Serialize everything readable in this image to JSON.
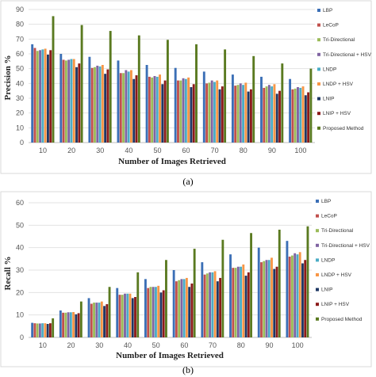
{
  "chart_data": [
    {
      "type": "bar",
      "caption": "(a)",
      "xlabel": "Number of Images Retrieved",
      "ylabel": "Precision %",
      "ylim": [
        0,
        90
      ],
      "yticks": [
        0,
        10,
        20,
        30,
        40,
        50,
        60,
        70,
        80,
        90
      ],
      "grid": true,
      "legend_position": "right",
      "categories": [
        "10",
        "20",
        "30",
        "40",
        "50",
        "60",
        "70",
        "80",
        "90",
        "100"
      ],
      "series": [
        {
          "name": "LBP",
          "color": "#3b6fb6",
          "values": [
            66.5,
            60,
            58,
            55.5,
            52.5,
            50.5,
            48,
            46,
            44.5,
            43
          ]
        },
        {
          "name": "LeCoP",
          "color": "#c0504d",
          "values": [
            64,
            56,
            50.5,
            47,
            44.5,
            42,
            40,
            38.5,
            37,
            36
          ]
        },
        {
          "name": "Tri-Directional",
          "color": "#9bbb59",
          "values": [
            62,
            55.5,
            51,
            47,
            44,
            42,
            40.5,
            39,
            38,
            36.5
          ]
        },
        {
          "name": "Tri-Directional + HSV",
          "color": "#8064a2",
          "values": [
            62.5,
            56,
            52,
            49,
            45,
            43.5,
            42,
            40,
            39,
            37.5
          ]
        },
        {
          "name": "LNDP",
          "color": "#4bacc6",
          "values": [
            63,
            56.5,
            51.5,
            48,
            44.5,
            43,
            41,
            39,
            38,
            37
          ]
        },
        {
          "name": "LNDP + HSV",
          "color": "#f79646",
          "values": [
            63.5,
            56.5,
            52.5,
            49,
            46,
            44,
            42,
            40.5,
            39.5,
            38
          ]
        },
        {
          "name": "LNIP",
          "color": "#1f3864",
          "values": [
            59.5,
            51,
            46.5,
            43,
            39.5,
            37.5,
            36,
            34.5,
            33,
            32
          ]
        },
        {
          "name": "LNIP + HSV",
          "color": "#8b1a1a",
          "values": [
            62.5,
            53.5,
            49.5,
            45.5,
            42,
            39.5,
            38,
            36,
            35,
            34
          ]
        },
        {
          "name": "Proposed Method",
          "color": "#5a7a20",
          "values": [
            85.5,
            79.5,
            75.5,
            72.5,
            69.5,
            66.5,
            63,
            58.5,
            53.5,
            50
          ]
        }
      ]
    },
    {
      "type": "bar",
      "caption": "(b)",
      "xlabel": "Number of Images Retrieved",
      "ylabel": "Recall %",
      "ylim": [
        0,
        60
      ],
      "yticks": [
        0,
        10,
        20,
        30,
        40,
        50,
        60
      ],
      "grid": true,
      "legend_position": "right",
      "categories": [
        "10",
        "20",
        "30",
        "40",
        "50",
        "60",
        "70",
        "80",
        "90",
        "100"
      ],
      "series": [
        {
          "name": "LBP",
          "color": "#3b6fb6",
          "values": [
            6.5,
            12,
            17.5,
            22,
            26,
            30,
            33.5,
            37,
            40,
            43
          ]
        },
        {
          "name": "LeCoP",
          "color": "#c0504d",
          "values": [
            6.3,
            11,
            15,
            19,
            22,
            25,
            28,
            31,
            33.5,
            36
          ]
        },
        {
          "name": "Tri-Directional",
          "color": "#9bbb59",
          "values": [
            6.2,
            11,
            15.5,
            19,
            22.5,
            25.5,
            28.5,
            31,
            34,
            36.5
          ]
        },
        {
          "name": "Tri-Directional + HSV",
          "color": "#8064a2",
          "values": [
            6.2,
            11.2,
            15.5,
            19.5,
            22.5,
            26,
            29,
            31.5,
            34.5,
            37.5
          ]
        },
        {
          "name": "LNDP",
          "color": "#4bacc6",
          "values": [
            6.3,
            11.2,
            15.5,
            19.5,
            22.5,
            26,
            29,
            31.5,
            34.5,
            37
          ]
        },
        {
          "name": "LNDP + HSV",
          "color": "#f79646",
          "values": [
            6.3,
            11.3,
            16,
            19.5,
            23,
            26.5,
            29.5,
            32.5,
            35.5,
            38
          ]
        },
        {
          "name": "LNIP",
          "color": "#1f3864",
          "values": [
            6,
            10.3,
            14,
            17.5,
            20,
            22.5,
            25,
            27.5,
            30.5,
            33
          ]
        },
        {
          "name": "LNIP + HSV",
          "color": "#8b1a1a",
          "values": [
            6.3,
            10.8,
            14.8,
            18,
            21,
            24,
            26.5,
            29,
            31.5,
            34.5
          ]
        },
        {
          "name": "Proposed Method",
          "color": "#5a7a20",
          "values": [
            8.5,
            16,
            22.5,
            29,
            34.5,
            39.5,
            43.5,
            46.5,
            48,
            49.5
          ]
        }
      ]
    }
  ]
}
